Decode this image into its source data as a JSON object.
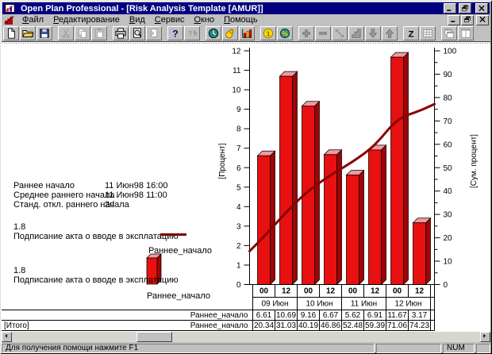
{
  "window": {
    "title": "Open Plan Professional - [Risk Analysis Template [AMUR]]",
    "app_icon": "app",
    "controls": [
      "minimize",
      "restore",
      "close"
    ]
  },
  "menu_bar": {
    "document_icon": "mdi-chart",
    "items": [
      "Файл",
      "Редактирование",
      "Вид",
      "Сервис",
      "Окно",
      "Помощь"
    ],
    "controls": [
      "minimize",
      "restore",
      "close"
    ]
  },
  "toolbar": {
    "groups": [
      [
        {
          "icon": "new-document",
          "enabled": true
        },
        {
          "icon": "open-folder",
          "enabled": true
        },
        {
          "icon": "save",
          "enabled": true
        }
      ],
      [
        {
          "icon": "cut",
          "enabled": false
        },
        {
          "icon": "copy",
          "enabled": false
        },
        {
          "icon": "paste",
          "enabled": false
        }
      ],
      [
        {
          "icon": "print",
          "enabled": true
        },
        {
          "icon": "print-preview",
          "enabled": true
        },
        {
          "icon": "refresh",
          "enabled": false
        }
      ],
      [
        {
          "icon": "help",
          "enabled": true
        },
        {
          "icon": "context-help",
          "enabled": false
        }
      ],
      [
        {
          "icon": "clock",
          "enabled": true
        },
        {
          "icon": "bird",
          "enabled": true
        },
        {
          "icon": "histogram",
          "enabled": true
        }
      ],
      [
        {
          "icon": "coin",
          "enabled": true
        },
        {
          "icon": "percent",
          "enabled": true
        }
      ],
      [
        {
          "icon": "plus",
          "enabled": false
        },
        {
          "icon": "minus",
          "enabled": false
        },
        {
          "icon": "link-nodes",
          "enabled": false
        },
        {
          "icon": "steps",
          "enabled": false
        },
        {
          "icon": "arrow-down",
          "enabled": false
        },
        {
          "icon": "arrow-up",
          "enabled": false
        }
      ],
      [
        {
          "icon": "z-sort",
          "enabled": true
        },
        {
          "icon": "grid",
          "enabled": false
        }
      ],
      [
        {
          "icon": "window-cascade",
          "enabled": false
        },
        {
          "icon": "window-tile",
          "enabled": false
        }
      ]
    ]
  },
  "info_panel": {
    "rows": [
      {
        "label": "Раннее начало",
        "value": "11 Июн98 16:00"
      },
      {
        "label": "Среднее раннего начала",
        "value": "11 Июн98 11:00"
      },
      {
        "label": "Станд. откл.  раннего начала",
        "value": "2d"
      }
    ]
  },
  "legend": [
    {
      "id": "1.8",
      "activity": "Подписание акта о вводе в эксплатацию",
      "symbol": "line",
      "series": "Раннее_начало"
    },
    {
      "id": "1.8",
      "activity": "Подписание акта о вводе в эксплатацию",
      "symbol": "bar",
      "series": "Раннее_начало"
    }
  ],
  "chart_data": {
    "type": "bar+line",
    "x_tick_labels": [
      "00",
      "12",
      "00",
      "12",
      "00",
      "12",
      "00",
      "12"
    ],
    "date_groups": [
      "09 Июн",
      "10 Июн",
      "11 Июн",
      "12 Июн"
    ],
    "series": [
      {
        "name": "Раннее_начало",
        "type": "bar",
        "axis": "left",
        "values": [
          6.61,
          10.69,
          9.16,
          6.67,
          5.62,
          6.91,
          11.67,
          3.17
        ]
      },
      {
        "name": "Раннее_начало",
        "type": "line",
        "axis": "right",
        "values": [
          20.34,
          31.03,
          40.19,
          46.86,
          52.48,
          59.39,
          71.06,
          74.23
        ],
        "edge_start_pct": 14.3,
        "edge_end_pct": 77.2
      }
    ],
    "left_axis": {
      "label": "[Процент]",
      "min": 0,
      "max": 12,
      "step": 1
    },
    "right_axis": {
      "label": "[Сум. процент]",
      "min": 0,
      "max": 100,
      "step": 10,
      "minor_step": 5
    },
    "legend_position": "left",
    "grid": false,
    "table": {
      "rows": [
        {
          "left_label": "",
          "series_label": "Раннее_начало",
          "values": [
            "6.61",
            "10.69",
            "9.16",
            "6.67",
            "5.62",
            "6.91",
            "11.67",
            "3.17"
          ]
        },
        {
          "left_label": "[Итого]",
          "series_label": "Раннее_начало",
          "values": [
            "20.34",
            "31.03",
            "40.19",
            "46.86",
            "52.48",
            "59.39",
            "71.06",
            "74.23"
          ]
        }
      ]
    }
  },
  "status_bar": {
    "message": "Для получения помощи нажмите F1",
    "num_indicator": "NUM"
  },
  "colors": {
    "titlebar": "#000080",
    "bar_front": "#e81010",
    "bar_top": "#f4989c",
    "bar_side": "#a00404",
    "curve": "#8b0000",
    "window": "#c0c0c0"
  }
}
